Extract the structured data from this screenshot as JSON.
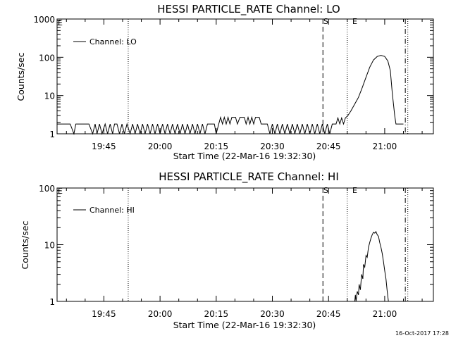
{
  "footer": {
    "timestamp": "16-Oct-2017 17:28"
  },
  "chart_data": [
    {
      "type": "line",
      "title": "HESSI PARTICLE_RATE Channel: LO",
      "xlabel": "Start Time (22-Mar-16 19:32:30)",
      "ylabel": "Counts/sec",
      "yscale": "log",
      "ylim": [
        1,
        1000
      ],
      "xlim": [
        "19:32:30",
        "21:13:00"
      ],
      "x_ticks": [
        "19:45",
        "20:00",
        "20:15",
        "20:30",
        "20:45",
        "21:00"
      ],
      "y_ticks": [
        "1",
        "10",
        "100",
        "1000"
      ],
      "legend": {
        "position": "top-left",
        "entries": [
          "Channel: LO"
        ]
      },
      "line_color": "#000000",
      "markers": [
        {
          "time": "19:51:30",
          "label": "",
          "style": "dotted"
        },
        {
          "time": "20:43:30",
          "label": "S",
          "style": "dashed"
        },
        {
          "time": "20:50:00",
          "label": "E",
          "style": "dotted"
        },
        {
          "time": "21:05:30",
          "label": "",
          "style": "dash-dot"
        },
        {
          "time": "21:06:10",
          "label": "",
          "style": "dotted"
        }
      ],
      "corner_label": "E",
      "series": [
        {
          "name": "Channel: LO",
          "pattern": "noise 1-2 counts/sec from 19:32:30 to 20:47; 2-3 counts/sec between 20:16 and 20:28; steady rise from 20:50 to a peak near 110 counts/sec at 20:59; fall back to about 2 counts/sec by 21:03",
          "points": [
            [
              "19:32:30",
              1.8
            ],
            [
              "19:36:00",
              1.8
            ],
            [
              "19:37:00",
              1
            ],
            [
              "19:37:30",
              1.8
            ],
            [
              "19:41:00",
              1.8
            ],
            [
              "19:42:00",
              1
            ],
            [
              "19:42:40",
              1.8
            ],
            [
              "19:43:10",
              1
            ],
            [
              "19:43:50",
              1.8
            ],
            [
              "19:44:30",
              1
            ],
            [
              "19:45:20",
              1.8
            ],
            [
              "19:46:00",
              1
            ],
            [
              "19:46:40",
              1.8
            ],
            [
              "19:47:20",
              1
            ],
            [
              "19:47:50",
              1.8
            ],
            [
              "19:48:30",
              1.8
            ],
            [
              "19:49:10",
              1
            ],
            [
              "19:49:50",
              1.8
            ],
            [
              "19:50:30",
              1
            ],
            [
              "19:51:10",
              1.8
            ],
            [
              "19:52:00",
              1
            ],
            [
              "19:52:40",
              1.8
            ],
            [
              "19:53:20",
              1
            ],
            [
              "19:54:00",
              1.8
            ],
            [
              "19:54:40",
              1
            ],
            [
              "19:55:20",
              1.8
            ],
            [
              "19:56:00",
              1
            ],
            [
              "19:56:40",
              1.8
            ],
            [
              "19:57:20",
              1
            ],
            [
              "19:58:00",
              1.8
            ],
            [
              "19:58:40",
              1
            ],
            [
              "19:59:20",
              1.8
            ],
            [
              "20:00:00",
              1
            ],
            [
              "20:00:40",
              1.8
            ],
            [
              "20:01:20",
              1
            ],
            [
              "20:02:00",
              1.8
            ],
            [
              "20:02:40",
              1
            ],
            [
              "20:03:20",
              1.8
            ],
            [
              "20:04:00",
              1
            ],
            [
              "20:04:40",
              1.8
            ],
            [
              "20:05:20",
              1
            ],
            [
              "20:06:00",
              1.8
            ],
            [
              "20:06:40",
              1
            ],
            [
              "20:07:20",
              1.8
            ],
            [
              "20:08:00",
              1
            ],
            [
              "20:08:40",
              1.8
            ],
            [
              "20:09:20",
              1
            ],
            [
              "20:10:00",
              1.8
            ],
            [
              "20:10:40",
              1
            ],
            [
              "20:11:20",
              1.8
            ],
            [
              "20:12:00",
              1
            ],
            [
              "20:12:40",
              1.8
            ],
            [
              "20:14:30",
              1.8
            ],
            [
              "20:15:00",
              1
            ],
            [
              "20:15:40",
              1.8
            ],
            [
              "20:16:10",
              2.7
            ],
            [
              "20:16:40",
              1.8
            ],
            [
              "20:17:10",
              2.7
            ],
            [
              "20:17:40",
              1.8
            ],
            [
              "20:18:10",
              2.7
            ],
            [
              "20:18:40",
              1.8
            ],
            [
              "20:19:10",
              2.7
            ],
            [
              "20:20:10",
              2.7
            ],
            [
              "20:20:40",
              1.8
            ],
            [
              "20:21:20",
              2.7
            ],
            [
              "20:22:30",
              2.7
            ],
            [
              "20:23:00",
              1.8
            ],
            [
              "20:23:30",
              2.7
            ],
            [
              "20:24:00",
              1.8
            ],
            [
              "20:24:30",
              2.7
            ],
            [
              "20:25:00",
              1.8
            ],
            [
              "20:25:30",
              2.7
            ],
            [
              "20:26:30",
              2.7
            ],
            [
              "20:27:00",
              1.8
            ],
            [
              "20:28:40",
              1.8
            ],
            [
              "20:29:20",
              1
            ],
            [
              "20:30:00",
              1.8
            ],
            [
              "20:30:40",
              1
            ],
            [
              "20:31:20",
              1.8
            ],
            [
              "20:32:00",
              1
            ],
            [
              "20:32:40",
              1.8
            ],
            [
              "20:33:20",
              1
            ],
            [
              "20:34:00",
              1.8
            ],
            [
              "20:34:40",
              1
            ],
            [
              "20:35:20",
              1.8
            ],
            [
              "20:36:00",
              1
            ],
            [
              "20:36:40",
              1.8
            ],
            [
              "20:37:20",
              1
            ],
            [
              "20:38:00",
              1.8
            ],
            [
              "20:38:40",
              1
            ],
            [
              "20:39:20",
              1.8
            ],
            [
              "20:40:00",
              1
            ],
            [
              "20:40:40",
              1.8
            ],
            [
              "20:41:20",
              1
            ],
            [
              "20:42:00",
              1.8
            ],
            [
              "20:42:40",
              1
            ],
            [
              "20:43:20",
              1.8
            ],
            [
              "20:44:00",
              1
            ],
            [
              "20:44:40",
              1.8
            ],
            [
              "20:45:20",
              1
            ],
            [
              "20:46:00",
              1.8
            ],
            [
              "20:47:00",
              1.8
            ],
            [
              "20:47:30",
              2.6
            ],
            [
              "20:48:00",
              1.8
            ],
            [
              "20:48:30",
              2.6
            ],
            [
              "20:49:00",
              1.8
            ],
            [
              "20:49:30",
              2.6
            ],
            [
              "20:50:10",
              3
            ],
            [
              "20:51:00",
              4
            ],
            [
              "20:52:00",
              6
            ],
            [
              "20:53:00",
              9
            ],
            [
              "20:54:00",
              16
            ],
            [
              "20:55:00",
              30
            ],
            [
              "20:56:00",
              55
            ],
            [
              "20:57:00",
              85
            ],
            [
              "20:58:00",
              105
            ],
            [
              "20:59:00",
              112
            ],
            [
              "21:00:00",
              105
            ],
            [
              "21:00:50",
              80
            ],
            [
              "21:01:30",
              45
            ],
            [
              "21:02:00",
              12
            ],
            [
              "21:02:40",
              3
            ],
            [
              "21:03:00",
              1.8
            ],
            [
              "21:05:00",
              1.8
            ]
          ]
        }
      ]
    },
    {
      "type": "line",
      "title": "HESSI PARTICLE_RATE Channel: HI",
      "xlabel": "Start Time (22-Mar-16 19:32:30)",
      "ylabel": "Counts/sec",
      "yscale": "log",
      "ylim": [
        1,
        100
      ],
      "xlim": [
        "19:32:30",
        "21:13:00"
      ],
      "x_ticks": [
        "19:45",
        "20:00",
        "20:15",
        "20:30",
        "20:45",
        "21:00"
      ],
      "y_ticks": [
        "1",
        "10",
        "100"
      ],
      "legend": {
        "position": "top-left",
        "entries": [
          "Channel: HI"
        ]
      },
      "line_color": "#000000",
      "markers": [
        {
          "time": "19:51:30",
          "label": "",
          "style": "dotted"
        },
        {
          "time": "20:43:30",
          "label": "S",
          "style": "dashed"
        },
        {
          "time": "20:50:00",
          "label": "E",
          "style": "dotted"
        },
        {
          "time": "21:05:30",
          "label": "",
          "style": "dash-dot"
        },
        {
          "time": "21:06:10",
          "label": "",
          "style": "dotted"
        }
      ],
      "corner_label": "E",
      "series": [
        {
          "name": "Channel: HI",
          "pattern": "near zero until about 20:52; rises to a peak near 17 counts/sec at 20:57; falls to below 1 count/sec by 21:01",
          "points": [
            [
              "20:52:00",
              0.9
            ],
            [
              "20:52:10",
              1.3
            ],
            [
              "20:52:20",
              1
            ],
            [
              "20:52:40",
              1.5
            ],
            [
              "20:53:00",
              1.3
            ],
            [
              "20:53:10",
              2
            ],
            [
              "20:53:30",
              1.6
            ],
            [
              "20:53:50",
              3
            ],
            [
              "20:54:10",
              2.5
            ],
            [
              "20:54:20",
              4.5
            ],
            [
              "20:54:40",
              4
            ],
            [
              "20:55:00",
              6.5
            ],
            [
              "20:55:20",
              6
            ],
            [
              "20:55:40",
              9
            ],
            [
              "20:56:00",
              11
            ],
            [
              "20:56:20",
              13
            ],
            [
              "20:56:40",
              15
            ],
            [
              "20:57:00",
              16.5
            ],
            [
              "20:57:20",
              16
            ],
            [
              "20:57:40",
              17
            ],
            [
              "20:58:00",
              15
            ],
            [
              "20:58:20",
              14
            ],
            [
              "20:58:40",
              11
            ],
            [
              "20:59:00",
              9
            ],
            [
              "20:59:20",
              7
            ],
            [
              "20:59:40",
              5
            ],
            [
              "21:00:00",
              3.5
            ],
            [
              "21:00:20",
              2.5
            ],
            [
              "21:00:40",
              1.5
            ],
            [
              "21:01:00",
              0.9
            ]
          ]
        }
      ]
    }
  ]
}
